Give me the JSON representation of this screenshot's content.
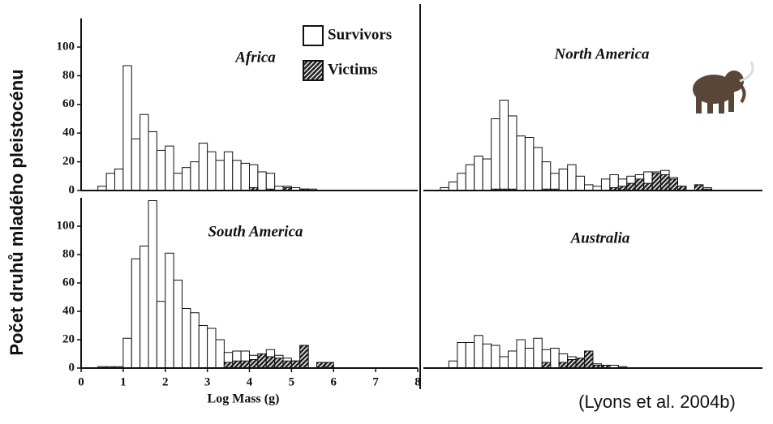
{
  "y_label": "Počet druhů mladého pleistocénu",
  "source": "(Lyons et al. 2004b)",
  "chart_data": [
    {
      "type": "histogram",
      "title": "Africa",
      "bins": [
        0.2,
        0.4,
        0.6,
        0.8,
        1,
        1.2,
        1.4,
        1.6,
        1.8,
        2,
        2.2,
        2.4,
        2.6,
        2.8,
        3,
        3.2,
        3.4,
        3.6,
        3.8,
        4,
        4.2,
        4.4,
        4.6,
        4.8,
        5,
        5.2,
        5.4,
        5.6,
        5.8,
        6,
        6.2,
        6.4,
        6.6,
        6.8,
        7
      ],
      "series": [
        {
          "name": "Survivors",
          "color": "#ffffff",
          "values": [
            0,
            3,
            12,
            15,
            87,
            36,
            53,
            41,
            28,
            31,
            12,
            16,
            20,
            33,
            27,
            21,
            27,
            21,
            19,
            18,
            13,
            12,
            3,
            3,
            2,
            1,
            1,
            0,
            0,
            0,
            0,
            0,
            0,
            0
          ]
        },
        {
          "name": "Victims",
          "color": "#222222",
          "hatched": true,
          "values": [
            0,
            0,
            0,
            0,
            0,
            0,
            0,
            0,
            0,
            0,
            0,
            0,
            0,
            0,
            0,
            0,
            0,
            0,
            0,
            2,
            0,
            1,
            0,
            2,
            0,
            1,
            0,
            0,
            0,
            0,
            0,
            0,
            0,
            0
          ]
        }
      ],
      "xlim": [
        0,
        8
      ],
      "ylim": [
        0,
        120
      ],
      "yticks": [
        0,
        20,
        40,
        60,
        80,
        100
      ]
    },
    {
      "type": "histogram",
      "title": "North America",
      "bins": [
        0.2,
        0.4,
        0.6,
        0.8,
        1,
        1.2,
        1.4,
        1.6,
        1.8,
        2,
        2.2,
        2.4,
        2.6,
        2.8,
        3,
        3.2,
        3.4,
        3.6,
        3.8,
        4,
        4.2,
        4.4,
        4.6,
        4.8,
        5,
        5.2,
        5.4,
        5.6,
        5.8,
        6,
        6.2,
        6.4,
        6.6,
        6.8,
        7
      ],
      "series": [
        {
          "color": "#ffffff",
          "values": [
            0,
            2,
            6,
            12,
            18,
            24,
            22,
            50,
            63,
            52,
            38,
            37,
            30,
            20,
            12,
            15,
            18,
            10,
            4,
            3,
            8,
            11,
            8,
            10,
            11,
            13,
            13,
            14,
            9,
            3,
            0,
            4,
            2,
            0
          ]
        },
        {
          "color": "#222222",
          "hatched": true,
          "values": [
            0,
            0,
            0,
            0,
            0,
            0,
            0,
            1,
            1,
            1,
            0,
            0,
            0,
            1,
            1,
            0,
            0,
            0,
            0,
            0,
            0,
            2,
            3,
            5,
            8,
            5,
            12,
            11,
            8,
            3,
            0,
            4,
            1,
            0
          ]
        }
      ],
      "xlim": [
        0,
        8
      ],
      "ylim": [
        0,
        120
      ]
    },
    {
      "type": "histogram",
      "title": "South America",
      "xlabel": "Log Mass (g)",
      "bins": [
        0.2,
        0.4,
        0.6,
        0.8,
        1,
        1.2,
        1.4,
        1.6,
        1.8,
        2,
        2.2,
        2.4,
        2.6,
        2.8,
        3,
        3.2,
        3.4,
        3.6,
        3.8,
        4,
        4.2,
        4.4,
        4.6,
        4.8,
        5,
        5.2,
        5.4,
        5.6,
        5.8,
        6,
        6.2,
        6.4,
        6.6,
        6.8,
        7
      ],
      "series": [
        {
          "color": "#ffffff",
          "values": [
            0,
            1,
            1,
            1,
            21,
            77,
            86,
            118,
            47,
            81,
            62,
            42,
            39,
            30,
            28,
            20,
            11,
            12,
            12,
            9,
            10,
            13,
            9,
            7,
            5,
            16,
            0,
            4,
            4,
            0,
            0,
            0,
            0,
            0
          ]
        },
        {
          "color": "#222222",
          "hatched": true,
          "values": [
            0,
            0,
            0,
            0,
            0,
            0,
            0,
            0,
            0,
            0,
            0,
            0,
            0,
            0,
            0,
            0,
            4,
            5,
            5,
            6,
            10,
            8,
            7,
            5,
            5,
            16,
            0,
            4,
            4,
            0,
            0,
            0,
            0,
            0
          ]
        }
      ],
      "xlim": [
        0,
        8
      ],
      "ylim": [
        0,
        120
      ],
      "xticks": [
        0,
        1,
        2,
        3,
        4,
        5,
        6,
        7,
        8
      ],
      "yticks": [
        0,
        20,
        40,
        60,
        80,
        100
      ]
    },
    {
      "type": "histogram",
      "title": "Australia",
      "bins": [
        0.2,
        0.4,
        0.6,
        0.8,
        1,
        1.2,
        1.4,
        1.6,
        1.8,
        2,
        2.2,
        2.4,
        2.6,
        2.8,
        3,
        3.2,
        3.4,
        3.6,
        3.8,
        4,
        4.2,
        4.4,
        4.6,
        4.8,
        5,
        5.2,
        5.4,
        5.6,
        5.8,
        6,
        6.2,
        6.4,
        6.6,
        6.8,
        7
      ],
      "series": [
        {
          "color": "#ffffff",
          "values": [
            0,
            0,
            5,
            18,
            18,
            23,
            17,
            16,
            8,
            12,
            20,
            14,
            21,
            13,
            14,
            10,
            8,
            6,
            12,
            3,
            2,
            2,
            1,
            0,
            0,
            0,
            0,
            0,
            0,
            0,
            0,
            0,
            0,
            0
          ]
        },
        {
          "color": "#222222",
          "hatched": true,
          "values": [
            0,
            0,
            0,
            0,
            0,
            0,
            0,
            0,
            0,
            0,
            0,
            0,
            0,
            4,
            0,
            4,
            6,
            7,
            12,
            2,
            2,
            0,
            0,
            0,
            0,
            0,
            0,
            0,
            0,
            0,
            0,
            0,
            0,
            0
          ]
        }
      ],
      "xlim": [
        0,
        8
      ],
      "ylim": [
        0,
        120
      ]
    }
  ]
}
